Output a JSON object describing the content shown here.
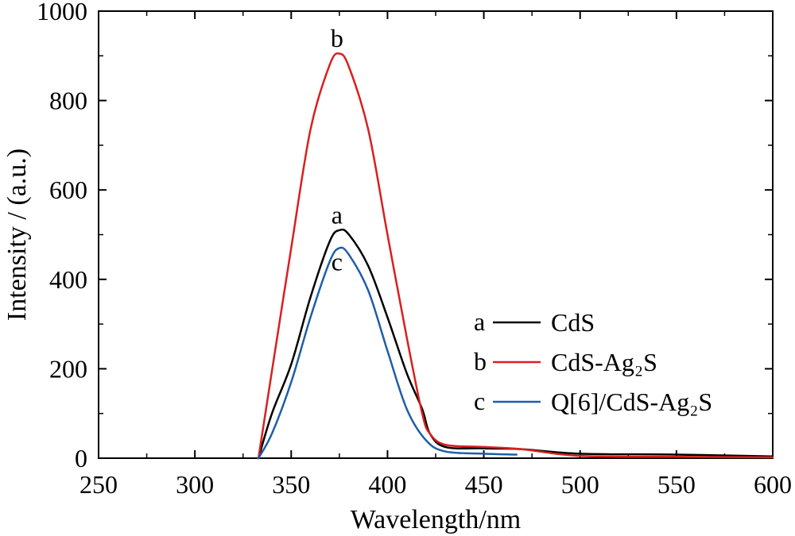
{
  "chart_data": {
    "type": "line",
    "xlabel": "Wavelength/nm",
    "ylabel": "Intensity / (a.u.)",
    "xlim": [
      250,
      600
    ],
    "ylim": [
      0,
      1000
    ],
    "xticks": [
      250,
      300,
      350,
      400,
      450,
      500,
      550,
      600
    ],
    "yticks": [
      0,
      200,
      400,
      600,
      800,
      1000
    ],
    "x_tick_labels": [
      "250",
      "300",
      "350",
      "400",
      "450",
      "500",
      "550",
      "600"
    ],
    "y_tick_labels": [
      "0",
      "200",
      "400",
      "600",
      "800",
      "1000"
    ],
    "grid": false,
    "legend_position": "bottom-right",
    "series": [
      {
        "key": "a",
        "name": "CdS",
        "color": "#000000",
        "points": [
          [
            333,
            0
          ],
          [
            340,
            100
          ],
          [
            350,
            210
          ],
          [
            360,
            360
          ],
          [
            370,
            485
          ],
          [
            375,
            510
          ],
          [
            380,
            500
          ],
          [
            390,
            430
          ],
          [
            400,
            315
          ],
          [
            410,
            190
          ],
          [
            418,
            110
          ],
          [
            422,
            55
          ],
          [
            430,
            25
          ],
          [
            450,
            22
          ],
          [
            470,
            20
          ],
          [
            500,
            10
          ],
          [
            550,
            8
          ],
          [
            600,
            4
          ]
        ]
      },
      {
        "key": "b",
        "name": "CdS-Ag₂S",
        "color": "#d91f1f",
        "points": [
          [
            333,
            0
          ],
          [
            340,
            195
          ],
          [
            350,
            470
          ],
          [
            360,
            735
          ],
          [
            370,
            880
          ],
          [
            375,
            905
          ],
          [
            380,
            875
          ],
          [
            390,
            735
          ],
          [
            400,
            500
          ],
          [
            410,
            270
          ],
          [
            418,
            100
          ],
          [
            422,
            55
          ],
          [
            430,
            30
          ],
          [
            450,
            25
          ],
          [
            470,
            20
          ],
          [
            500,
            5
          ],
          [
            550,
            3
          ],
          [
            600,
            2
          ]
        ]
      },
      {
        "key": "c",
        "name": "Q[6]/CdS-Ag₂S",
        "color": "#1f5ea8",
        "points": [
          [
            333,
            0
          ],
          [
            340,
            55
          ],
          [
            350,
            170
          ],
          [
            360,
            315
          ],
          [
            370,
            440
          ],
          [
            375,
            470
          ],
          [
            380,
            455
          ],
          [
            390,
            375
          ],
          [
            400,
            240
          ],
          [
            410,
            110
          ],
          [
            420,
            40
          ],
          [
            430,
            15
          ],
          [
            450,
            10
          ],
          [
            467,
            8
          ]
        ]
      }
    ],
    "curve_labels": [
      {
        "text": "a",
        "x": 375,
        "y": 525
      },
      {
        "text": "b",
        "x": 375,
        "y": 920
      },
      {
        "text": "c",
        "x": 375,
        "y": 420
      }
    ],
    "legend": {
      "keys": [
        "a",
        "b",
        "c"
      ],
      "labels": [
        "CdS",
        "CdS-Ag₂S",
        "Q[6]/CdS-Ag₂S"
      ]
    }
  }
}
